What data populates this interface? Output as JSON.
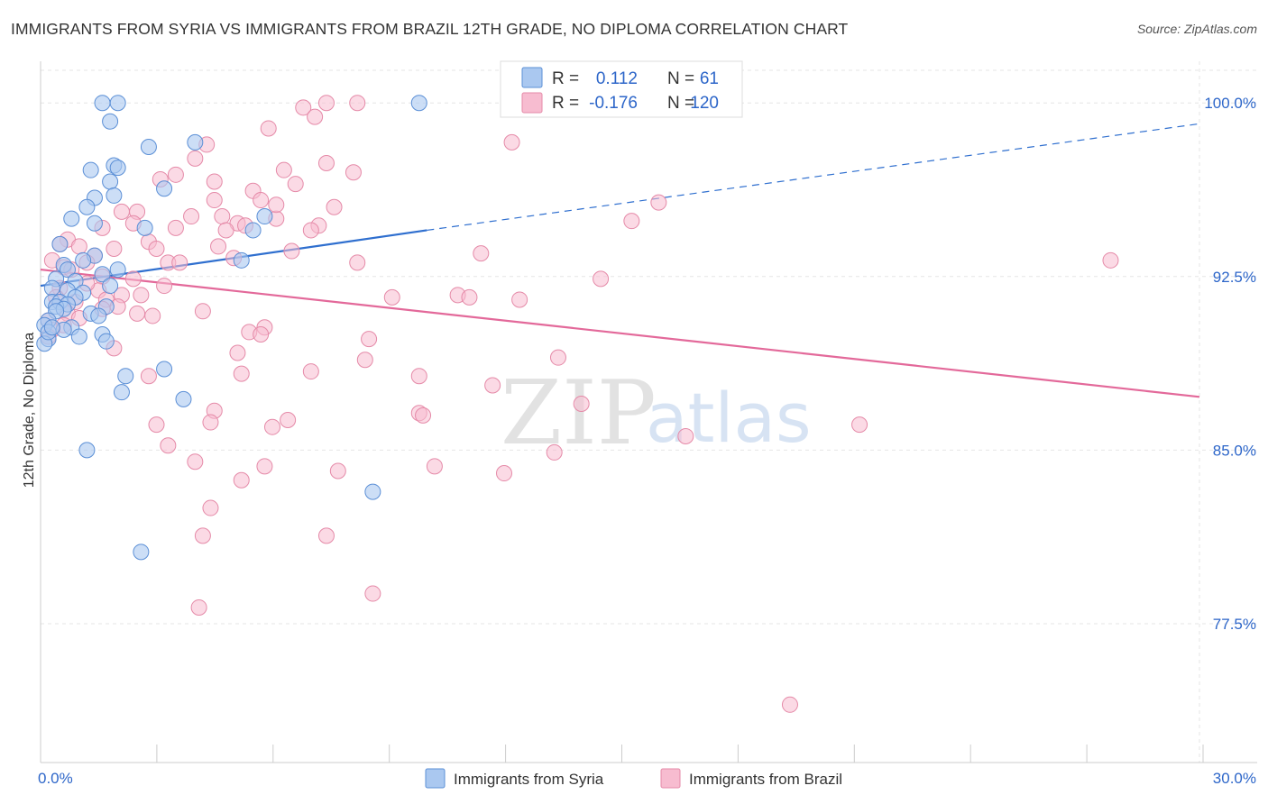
{
  "title": "IMMIGRANTS FROM SYRIA VS IMMIGRANTS FROM BRAZIL 12TH GRADE, NO DIPLOMA CORRELATION CHART",
  "source": "Source: ZipAtlas.com",
  "watermark": {
    "left": "ZIP",
    "right": "atlas"
  },
  "colors": {
    "syria_fill": "#aac8f0",
    "syria_stroke": "#5b8fd6",
    "syria_line": "#2f6fcf",
    "brazil_fill": "#f7bcd0",
    "brazil_stroke": "#e58aa8",
    "brazil_line": "#e3699a",
    "label_blue": "#2d66c9",
    "grid": "#e6e6e6"
  },
  "legend": {
    "syria": {
      "r_label": "R =",
      "r_value": "0.112",
      "n_label": "N =",
      "n_value": "61"
    },
    "brazil": {
      "r_label": "R =",
      "r_value": "-0.176",
      "n_label": "N =",
      "n_value": "120"
    }
  },
  "chart_data": {
    "type": "scatter",
    "title": "IMMIGRANTS FROM SYRIA VS IMMIGRANTS FROM BRAZIL 12TH GRADE, NO DIPLOMA CORRELATION CHART",
    "xlabel": "",
    "ylabel": "12th Grade, No Diploma",
    "xlim": [
      0,
      30
    ],
    "ylim": [
      71.5,
      101.8
    ],
    "x_tick_labels": [
      "0.0%",
      "30.0%"
    ],
    "y_ticks": [
      100.0,
      92.5,
      85.0,
      77.5
    ],
    "y_tick_labels": [
      "100.0%",
      "92.5%",
      "85.0%",
      "77.5%"
    ],
    "grid": true,
    "legend_position": "top-center",
    "series": [
      {
        "name": "Immigrants from Syria",
        "color": "#aac8f0",
        "R": 0.112,
        "N": 61,
        "trend": {
          "x": [
            0,
            10
          ],
          "y": [
            92.1,
            94.5
          ]
        },
        "trend_dashed": {
          "x": [
            10,
            30
          ],
          "y": [
            94.5,
            99.1
          ]
        },
        "points": [
          [
            1.6,
            100.0
          ],
          [
            2.0,
            100.0
          ],
          [
            9.8,
            100.0
          ],
          [
            1.8,
            99.2
          ],
          [
            4.0,
            98.3
          ],
          [
            2.8,
            98.1
          ],
          [
            1.9,
            97.3
          ],
          [
            2.0,
            97.2
          ],
          [
            1.3,
            97.1
          ],
          [
            1.8,
            96.6
          ],
          [
            3.2,
            96.3
          ],
          [
            1.9,
            96.0
          ],
          [
            1.4,
            95.9
          ],
          [
            1.2,
            95.5
          ],
          [
            5.8,
            95.1
          ],
          [
            0.8,
            95.0
          ],
          [
            1.4,
            94.8
          ],
          [
            2.7,
            94.6
          ],
          [
            5.5,
            94.5
          ],
          [
            0.5,
            93.9
          ],
          [
            1.4,
            93.4
          ],
          [
            1.1,
            93.2
          ],
          [
            5.2,
            93.2
          ],
          [
            0.6,
            93.0
          ],
          [
            0.7,
            92.8
          ],
          [
            2.0,
            92.8
          ],
          [
            1.6,
            92.6
          ],
          [
            0.4,
            92.4
          ],
          [
            0.9,
            92.3
          ],
          [
            1.8,
            92.1
          ],
          [
            0.3,
            92.0
          ],
          [
            0.7,
            91.9
          ],
          [
            1.1,
            91.8
          ],
          [
            0.9,
            91.6
          ],
          [
            0.3,
            91.4
          ],
          [
            0.5,
            91.4
          ],
          [
            0.7,
            91.3
          ],
          [
            0.4,
            91.2
          ],
          [
            1.7,
            91.2
          ],
          [
            0.6,
            91.1
          ],
          [
            0.4,
            91.0
          ],
          [
            1.3,
            90.9
          ],
          [
            1.5,
            90.8
          ],
          [
            0.2,
            90.6
          ],
          [
            0.1,
            90.4
          ],
          [
            0.8,
            90.3
          ],
          [
            0.6,
            90.2
          ],
          [
            1.6,
            90.0
          ],
          [
            1.0,
            89.9
          ],
          [
            0.2,
            89.8
          ],
          [
            1.7,
            89.7
          ],
          [
            0.1,
            89.6
          ],
          [
            3.2,
            88.5
          ],
          [
            2.2,
            88.2
          ],
          [
            2.1,
            87.5
          ],
          [
            3.7,
            87.2
          ],
          [
            1.2,
            85.0
          ],
          [
            8.6,
            83.2
          ],
          [
            2.6,
            80.6
          ],
          [
            0.2,
            90.1
          ],
          [
            0.3,
            90.3
          ]
        ]
      },
      {
        "name": "Immigrants from Brazil",
        "color": "#f7bcd0",
        "R": -0.176,
        "N": 120,
        "trend": {
          "x": [
            0,
            30
          ],
          "y": [
            92.8,
            87.3
          ]
        },
        "points": [
          [
            7.4,
            100.0
          ],
          [
            8.2,
            100.0
          ],
          [
            12.2,
            100.0
          ],
          [
            16.4,
            100.0
          ],
          [
            6.8,
            99.8
          ],
          [
            7.1,
            99.4
          ],
          [
            5.9,
            98.9
          ],
          [
            12.2,
            98.3
          ],
          [
            4.3,
            98.2
          ],
          [
            4.0,
            97.6
          ],
          [
            7.4,
            97.4
          ],
          [
            6.3,
            97.1
          ],
          [
            8.1,
            97.0
          ],
          [
            3.5,
            96.9
          ],
          [
            3.1,
            96.7
          ],
          [
            4.5,
            96.6
          ],
          [
            6.6,
            96.5
          ],
          [
            5.5,
            96.2
          ],
          [
            4.5,
            95.8
          ],
          [
            5.7,
            95.8
          ],
          [
            16.0,
            95.7
          ],
          [
            7.6,
            95.5
          ],
          [
            2.1,
            95.3
          ],
          [
            2.5,
            95.3
          ],
          [
            3.9,
            95.1
          ],
          [
            4.7,
            95.1
          ],
          [
            6.1,
            95.0
          ],
          [
            15.3,
            94.9
          ],
          [
            2.4,
            94.8
          ],
          [
            5.1,
            94.8
          ],
          [
            5.3,
            94.7
          ],
          [
            7.2,
            94.7
          ],
          [
            1.6,
            94.6
          ],
          [
            3.5,
            94.6
          ],
          [
            4.8,
            94.5
          ],
          [
            7.0,
            94.5
          ],
          [
            0.7,
            94.1
          ],
          [
            2.8,
            94.0
          ],
          [
            0.5,
            93.9
          ],
          [
            1.0,
            93.8
          ],
          [
            4.6,
            93.8
          ],
          [
            3.0,
            93.7
          ],
          [
            1.9,
            93.7
          ],
          [
            6.5,
            93.6
          ],
          [
            11.4,
            93.5
          ],
          [
            1.4,
            93.4
          ],
          [
            5.0,
            93.3
          ],
          [
            0.3,
            93.2
          ],
          [
            1.2,
            93.1
          ],
          [
            3.3,
            93.1
          ],
          [
            3.6,
            93.1
          ],
          [
            8.2,
            93.1
          ],
          [
            27.7,
            93.2
          ],
          [
            0.6,
            92.9
          ],
          [
            0.8,
            92.8
          ],
          [
            1.6,
            92.5
          ],
          [
            2.4,
            92.4
          ],
          [
            14.5,
            92.4
          ],
          [
            3.2,
            92.1
          ],
          [
            0.5,
            92.0
          ],
          [
            1.5,
            91.9
          ],
          [
            2.1,
            91.7
          ],
          [
            2.6,
            91.7
          ],
          [
            9.1,
            91.6
          ],
          [
            10.8,
            91.7
          ],
          [
            11.1,
            91.6
          ],
          [
            12.4,
            91.5
          ],
          [
            1.7,
            91.5
          ],
          [
            0.9,
            91.4
          ],
          [
            2.0,
            91.2
          ],
          [
            1.6,
            91.1
          ],
          [
            4.2,
            91.0
          ],
          [
            0.7,
            90.9
          ],
          [
            2.9,
            90.8
          ],
          [
            1.0,
            90.7
          ],
          [
            0.2,
            90.6
          ],
          [
            0.6,
            90.4
          ],
          [
            5.8,
            90.3
          ],
          [
            0.3,
            90.2
          ],
          [
            5.4,
            90.1
          ],
          [
            5.7,
            90.0
          ],
          [
            0.2,
            89.9
          ],
          [
            8.5,
            89.8
          ],
          [
            1.9,
            89.4
          ],
          [
            5.1,
            89.2
          ],
          [
            13.4,
            89.0
          ],
          [
            8.4,
            88.9
          ],
          [
            7.0,
            88.4
          ],
          [
            5.2,
            88.3
          ],
          [
            2.8,
            88.2
          ],
          [
            9.8,
            88.2
          ],
          [
            11.7,
            87.8
          ],
          [
            14.0,
            87.0
          ],
          [
            4.5,
            86.7
          ],
          [
            9.8,
            86.6
          ],
          [
            9.9,
            86.5
          ],
          [
            6.4,
            86.3
          ],
          [
            4.4,
            86.2
          ],
          [
            6.0,
            86.0
          ],
          [
            3.0,
            86.1
          ],
          [
            21.2,
            86.1
          ],
          [
            16.7,
            85.6
          ],
          [
            3.3,
            85.2
          ],
          [
            13.3,
            84.9
          ],
          [
            4.0,
            84.5
          ],
          [
            10.2,
            84.3
          ],
          [
            5.8,
            84.3
          ],
          [
            7.7,
            84.1
          ],
          [
            12.0,
            84.0
          ],
          [
            5.2,
            83.7
          ],
          [
            4.4,
            82.5
          ],
          [
            4.2,
            81.3
          ],
          [
            7.4,
            81.3
          ],
          [
            8.6,
            78.8
          ],
          [
            4.1,
            78.2
          ],
          [
            19.4,
            74.0
          ],
          [
            1.2,
            92.2
          ],
          [
            0.4,
            91.6
          ],
          [
            2.5,
            90.9
          ],
          [
            6.1,
            95.6
          ]
        ]
      }
    ]
  },
  "bottom_legend": {
    "syria": "Immigrants from Syria",
    "brazil": "Immigrants from Brazil"
  }
}
